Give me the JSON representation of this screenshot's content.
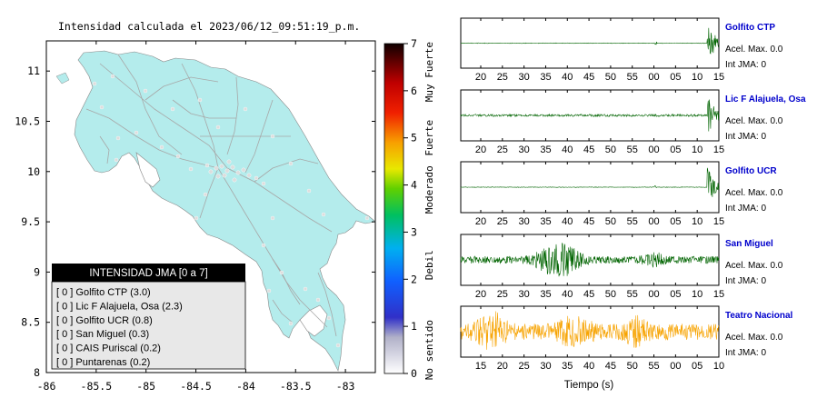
{
  "title": "Intensidad calculada el 2023/06/12_09:51:19_p.m.",
  "colors": {
    "land": "#b4ecec",
    "roads": "#a7a7a7",
    "trace_green": "#006400",
    "trace_orange": "#f7a300",
    "station_label": "#0000cc",
    "legend_header_bg": "#000000",
    "legend_body_bg": "#e8e8e8"
  },
  "chart_data": [
    {
      "type": "map",
      "x_ticks": [
        "-86",
        "-85.5",
        "-85",
        "-84.5",
        "-84",
        "-83.5",
        "-83"
      ],
      "y_ticks": [
        "8",
        "8.5",
        "9",
        "9.5",
        "10",
        "10.5",
        "11"
      ],
      "xlim": [
        -86,
        -82.7
      ],
      "ylim": [
        8,
        11.3
      ]
    },
    {
      "type": "colorbar",
      "ticks": [
        "0",
        "1",
        "2",
        "3",
        "4",
        "5",
        "6",
        "7"
      ],
      "range": [
        0,
        7
      ],
      "categories": [
        "No sentido",
        "Debil",
        "Moderado",
        "Fuerte",
        "Muy Fuerte"
      ]
    }
  ],
  "legend": {
    "header": "INTENSIDAD JMA [0 a 7]",
    "items": [
      "[ 0 ] Golfito CTP (3.0)",
      "[ 0 ] Lic F Alajuela, Osa (2.3)",
      "[ 0 ] Golfito UCR (0.8)",
      "[ 0 ] San Miguel (0.3)",
      "[ 0 ] CAIS Puriscal (0.2)",
      "[ 0 ] Puntarenas (0.2)"
    ]
  },
  "traces": [
    {
      "station": "Golfito CTP",
      "accel": "Acel. Max. 0.0",
      "int": "Int JMA: 0",
      "color": "green",
      "kind": "late-burst",
      "ticks": [
        "20",
        "25",
        "30",
        "35",
        "40",
        "45",
        "50",
        "55",
        "00",
        "05",
        "10",
        "15"
      ]
    },
    {
      "station": "Lic F Alajuela, Osa",
      "accel": "Acel. Max. 0.0",
      "int": "Int JMA: 0",
      "color": "green",
      "kind": "late-burst-noise",
      "ticks": [
        "20",
        "25",
        "30",
        "35",
        "40",
        "45",
        "50",
        "55",
        "00",
        "05",
        "10",
        "15"
      ]
    },
    {
      "station": "Golfito UCR",
      "accel": "Acel. Max. 0.0",
      "int": "Int JMA: 0",
      "color": "green",
      "kind": "late-burst-clean",
      "ticks": [
        "20",
        "25",
        "30",
        "35",
        "40",
        "45",
        "50",
        "55",
        "00",
        "05",
        "10",
        "15"
      ]
    },
    {
      "station": "San Miguel",
      "accel": "Acel. Max. 0.0",
      "int": "Int JMA: 0",
      "color": "green",
      "kind": "mid-event",
      "ticks": [
        "20",
        "25",
        "30",
        "35",
        "40",
        "45",
        "50",
        "55",
        "00",
        "05",
        "10",
        "15"
      ]
    },
    {
      "station": "Teatro Nacional",
      "accel": "Acel. Max. 0.0",
      "int": "Int JMA: 0",
      "color": "orange",
      "kind": "noisy",
      "ticks": [
        "15",
        "20",
        "25",
        "30",
        "35",
        "40",
        "45",
        "50",
        "55",
        "00",
        "05",
        "10"
      ]
    }
  ],
  "x_axis_label": "Tiempo (s)"
}
